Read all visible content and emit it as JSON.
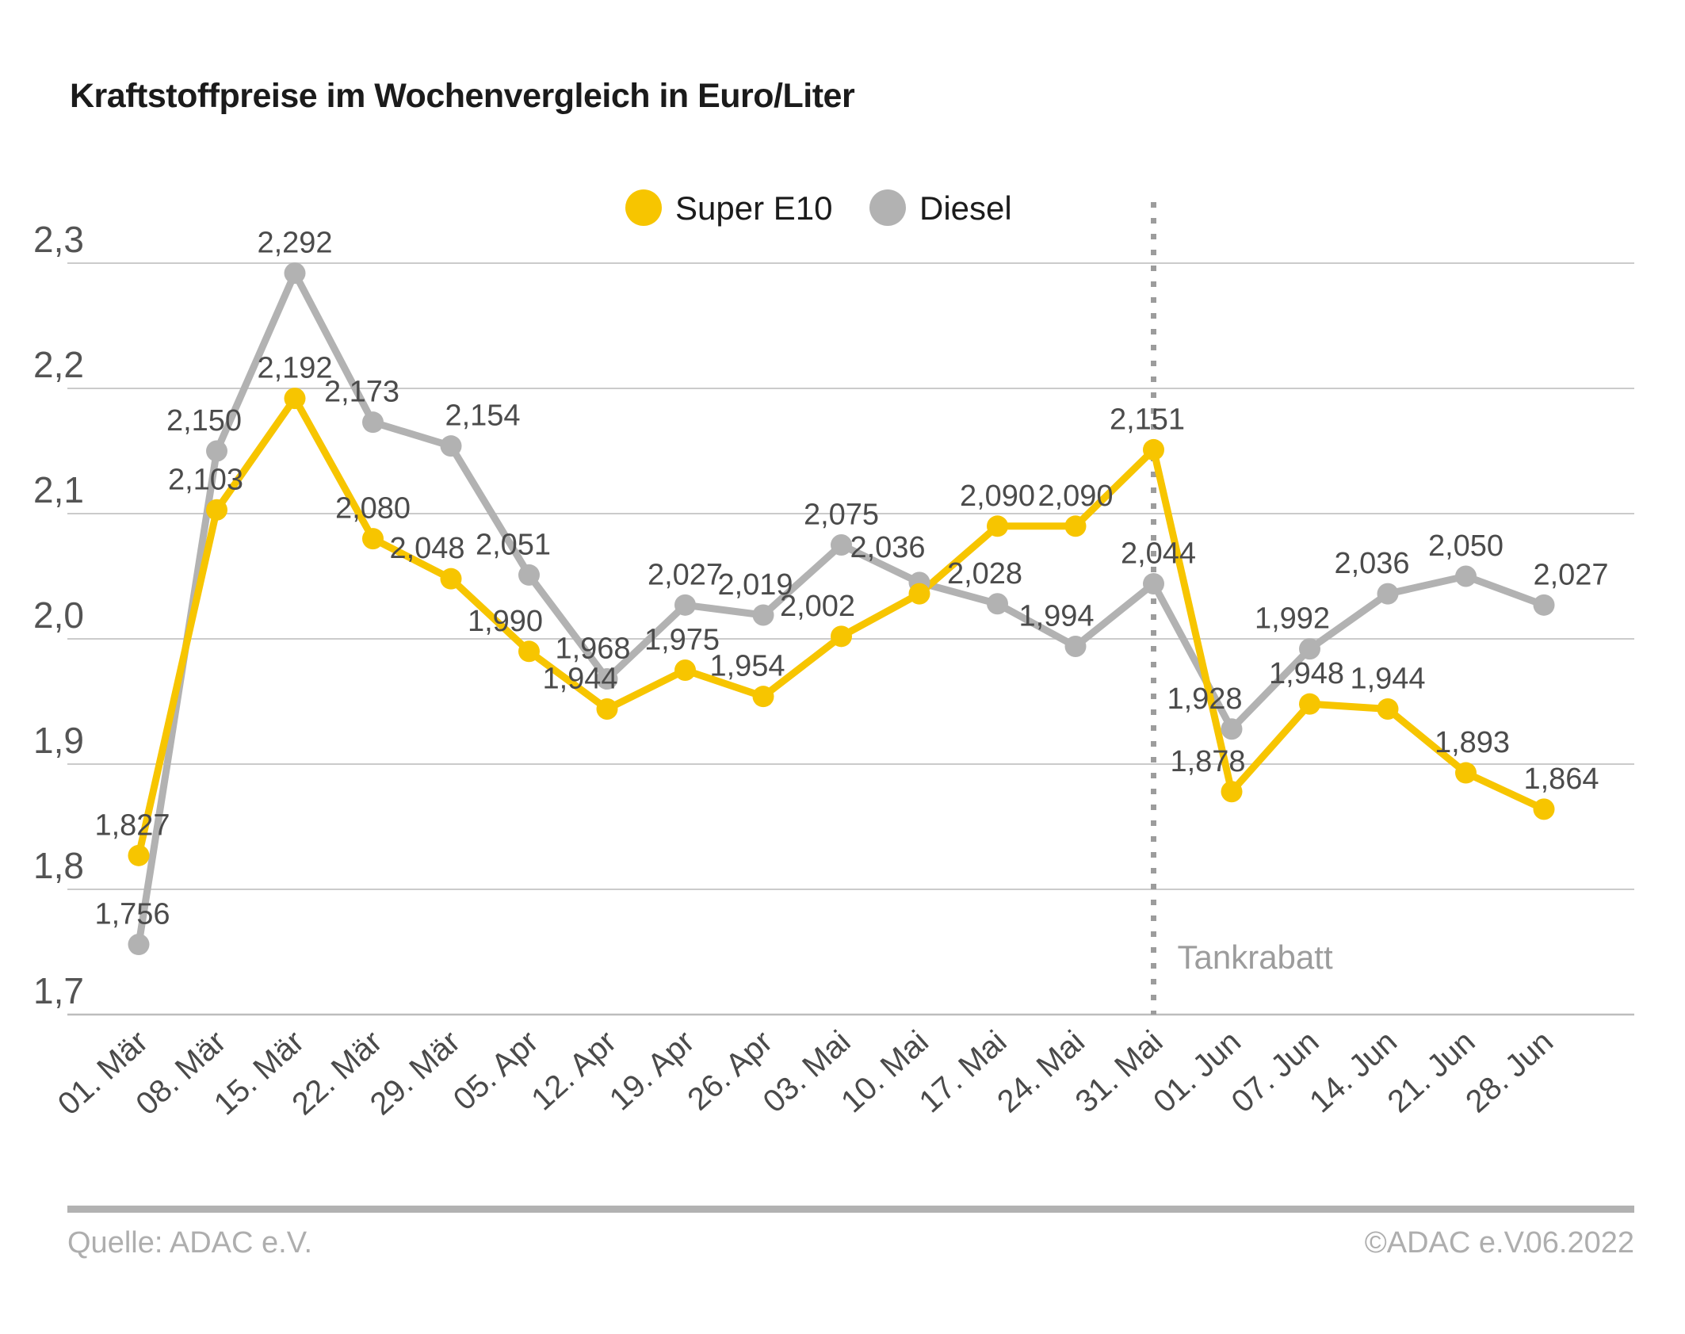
{
  "title": "Kraftstoffpreise im Wochenvergleich in Euro/Liter",
  "legend": [
    {
      "label": "Super E10",
      "color": "#F7C500"
    },
    {
      "label": "Diesel",
      "color": "#B2B2B2"
    }
  ],
  "annotation": {
    "label": "Tankrabatt",
    "x_category": "31. Mai",
    "x_index": 13
  },
  "footer": {
    "source": "Quelle: ADAC e.V.",
    "copyright": "©ADAC e.V.",
    "date": "06.2022"
  },
  "colors": {
    "super_e10": "#F7C500",
    "diesel": "#B2B2B2",
    "grid": "#CBCBCB",
    "axis": "#BDBDBD",
    "dotted_line": "#9C9C9C"
  },
  "chart_data": {
    "type": "line",
    "title": "Kraftstoffpreise im Wochenvergleich in Euro/Liter",
    "x": [
      "01. Mär",
      "08. Mär",
      "15. Mär",
      "22. Mär",
      "29. Mär",
      "05. Apr",
      "12. Apr",
      "19. Apr",
      "26. Apr",
      "03. Mai",
      "10. Mai",
      "17. Mai",
      "24. Mai",
      "31. Mai",
      "01. Jun",
      "07. Jun",
      "14. Jun",
      "21. Jun",
      "28. Jun"
    ],
    "series": [
      {
        "name": "Diesel",
        "color": "#B2B2B2",
        "values": [
          1.756,
          2.15,
          2.292,
          2.173,
          2.154,
          2.051,
          1.968,
          2.027,
          2.019,
          2.075,
          2.045,
          2.028,
          1.994,
          2.044,
          1.928,
          1.992,
          2.036,
          2.05,
          2.027
        ],
        "labels": [
          "1,756",
          "2,150",
          "2,292",
          "2,173",
          "2,154",
          "2,051",
          "1,968",
          "2,027",
          "2,019",
          "2,075",
          "",
          "2,028",
          "1,994",
          "2,044",
          "1,928",
          "1,992",
          "2,036",
          "2,050",
          "2,027"
        ]
      },
      {
        "name": "Super E10",
        "color": "#F7C500",
        "values": [
          1.827,
          2.103,
          2.192,
          2.08,
          2.048,
          1.99,
          1.944,
          1.975,
          1.954,
          2.002,
          2.036,
          2.09,
          2.09,
          2.151,
          1.878,
          1.948,
          1.944,
          1.893,
          1.864
        ],
        "labels": [
          "1,827",
          "2,103",
          "2,192",
          "2,080",
          "2,048",
          "1,990",
          "1,944",
          "1,975",
          "1,954",
          "2,002",
          "2,036",
          "2,090",
          "2,090",
          "2,151",
          "1,878",
          "1,948",
          "1,944",
          "1,893",
          "1,864"
        ]
      }
    ],
    "ylim": [
      1.7,
      2.3
    ],
    "yticks": [
      {
        "v": 2.3,
        "label": "2,3"
      },
      {
        "v": 2.2,
        "label": "2,2"
      },
      {
        "v": 2.1,
        "label": "2,1"
      },
      {
        "v": 2.0,
        "label": "2,0"
      },
      {
        "v": 1.9,
        "label": "1,9"
      },
      {
        "v": 1.8,
        "label": "1,8"
      },
      {
        "v": 1.7,
        "label": "1,7"
      }
    ],
    "grid": true,
    "legend_position": "top-center",
    "vertical_reference_line": {
      "x_category": "31. Mai",
      "label": "Tankrabatt",
      "style": "dotted"
    }
  }
}
